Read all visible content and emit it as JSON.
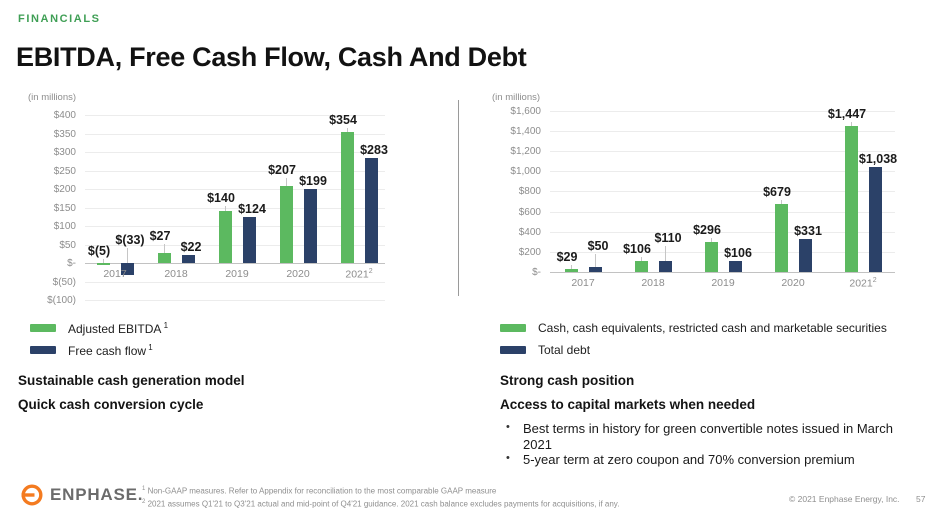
{
  "header": {
    "eyebrow": "FINANCIALS",
    "title": "EBITDA, Free Cash Flow, Cash And Debt"
  },
  "colors": {
    "eyebrow_green": "#3f9f55",
    "bar_green": "#5cb960",
    "bar_navy": "#2b4168",
    "logo_orange": "#f47b20"
  },
  "chart_data": [
    {
      "type": "bar",
      "units_label": "(in millions)",
      "categories": [
        "2017",
        "2018",
        "2019",
        "2020",
        "2021"
      ],
      "category_sup": [
        "",
        "",
        "",
        "",
        "2"
      ],
      "ylim": [
        -100,
        400
      ],
      "y_ticks": [
        "$400",
        "$350",
        "$300",
        "$250",
        "$200",
        "$150",
        "$100",
        "$50",
        "$-",
        "$(50)",
        "$(100)"
      ],
      "y_tick_values": [
        400,
        350,
        300,
        250,
        200,
        150,
        100,
        50,
        0,
        -50,
        -100
      ],
      "grid": true,
      "legend_position": "bottom-left",
      "series": [
        {
          "name": "Adjusted EBITDA",
          "sup": "1",
          "color": "#5cb960",
          "values": [
            -5,
            27,
            140,
            207,
            354
          ],
          "value_labels": [
            "$(5)",
            "$27",
            "$140",
            "$207",
            "$354"
          ]
        },
        {
          "name": "Free cash flow",
          "sup": "1",
          "color": "#2b4168",
          "values": [
            -33,
            22,
            124,
            199,
            283
          ],
          "value_labels": [
            "$(33)",
            "$22",
            "$124",
            "$199",
            "$283"
          ]
        }
      ]
    },
    {
      "type": "bar",
      "units_label": "(in millions)",
      "categories": [
        "2017",
        "2018",
        "2019",
        "2020",
        "2021"
      ],
      "category_sup": [
        "",
        "",
        "",
        "",
        "2"
      ],
      "ylim": [
        0,
        1600
      ],
      "y_ticks": [
        "$1,600",
        "$1,400",
        "$1,200",
        "$1,000",
        "$800",
        "$600",
        "$400",
        "$200",
        "$-"
      ],
      "y_tick_values": [
        1600,
        1400,
        1200,
        1000,
        800,
        600,
        400,
        200,
        0
      ],
      "grid": true,
      "legend_position": "bottom-left",
      "series": [
        {
          "name": "Cash, cash equivalents, restricted cash and marketable securities",
          "sup": "",
          "color": "#5cb960",
          "values": [
            29,
            106,
            296,
            679,
            1447
          ],
          "value_labels": [
            "$29",
            "$106",
            "$296",
            "$679",
            "$1,447"
          ]
        },
        {
          "name": "Total debt",
          "sup": "",
          "color": "#2b4168",
          "values": [
            50,
            110,
            106,
            331,
            1038
          ],
          "value_labels": [
            "$50",
            "$110",
            "$106",
            "$331",
            "$1,038"
          ]
        }
      ]
    }
  ],
  "left_panel": {
    "statements": [
      "Sustainable cash generation model",
      "Quick cash conversion cycle"
    ]
  },
  "right_panel": {
    "statements": [
      "Strong cash position",
      "Access to capital markets when needed"
    ],
    "bullets": [
      "Best terms in history for green convertible notes issued in March 2021",
      "5-year term at zero coupon and 70% conversion premium"
    ]
  },
  "footer": {
    "logo_text": "ENPHASE.",
    "footnotes": [
      {
        "sup": "1",
        "text": "Non-GAAP measures. Refer to Appendix for reconciliation to the most comparable GAAP measure"
      },
      {
        "sup": "2",
        "text": "2021 assumes Q1'21 to Q3'21 actual and mid-point of Q4'21 guidance. 2021 cash balance excludes payments for acquisitions, if any."
      }
    ],
    "copyright": "© 2021 Enphase Energy, Inc.",
    "page_number": "57"
  }
}
